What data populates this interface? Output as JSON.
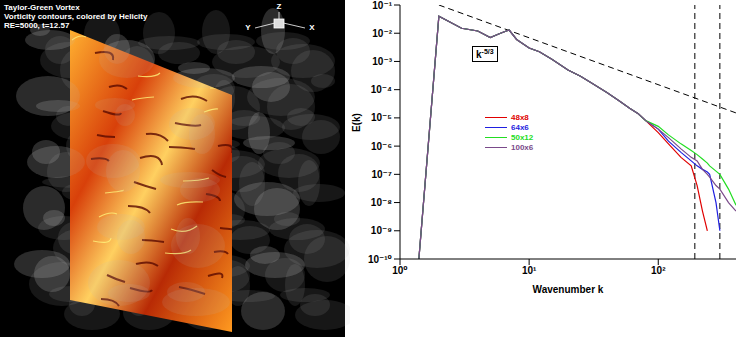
{
  "chart_data": {
    "type": "line",
    "x_label": "Wavenumber k",
    "y_label": "E(k)",
    "log": true,
    "grid": false,
    "legend": "center",
    "xlim": [
      1,
      400
    ],
    "xticks": [
      {
        "value": 1,
        "label": "10⁰"
      },
      {
        "value": 10,
        "label": "10¹"
      },
      {
        "value": 100,
        "label": "10²"
      }
    ],
    "ylim": [
      1e-10,
      0.1
    ],
    "yticks": [
      {
        "value": 1e-10,
        "label": "10⁻¹⁰"
      },
      {
        "value": 1e-09,
        "label": "10⁻⁹"
      },
      {
        "value": 1e-08,
        "label": "10⁻⁸"
      },
      {
        "value": 1e-07,
        "label": "10⁻⁷"
      },
      {
        "value": 1e-06,
        "label": "10⁻⁶"
      },
      {
        "value": 1e-05,
        "label": "10⁻⁵"
      },
      {
        "value": 0.0001,
        "label": "10⁻⁴"
      },
      {
        "value": 0.001,
        "label": "10⁻³"
      },
      {
        "value": 0.01,
        "label": "10⁻²"
      },
      {
        "value": 0.1,
        "label": "10⁻¹"
      }
    ],
    "x": [
      1.4,
      2,
      3,
      4,
      5,
      6,
      7,
      8,
      10,
      12,
      15,
      20,
      25,
      30,
      40,
      50,
      60,
      70,
      80,
      100,
      120,
      150,
      180,
      200,
      220,
      240,
      250,
      280,
      300,
      350,
      400
    ],
    "series": [
      {
        "name": "48x8",
        "color": "#e00000",
        "values": [
          1e-10,
          0.04,
          0.015,
          0.012,
          0.007,
          0.01,
          0.013,
          0.006,
          0.003,
          0.0022,
          0.0012,
          0.0005,
          0.0003,
          0.00018,
          8e-05,
          4e-05,
          2.2e-05,
          1.4e-05,
          8e-06,
          3e-06,
          1.2e-06,
          4e-07,
          2e-07,
          4e-08,
          5e-09,
          1e-09,
          null,
          null,
          null,
          null,
          null
        ]
      },
      {
        "name": "64x6",
        "color": "#1f1fe0",
        "values": [
          1e-10,
          0.04,
          0.015,
          0.012,
          0.007,
          0.01,
          0.013,
          0.006,
          0.003,
          0.0022,
          0.0012,
          0.0005,
          0.0003,
          0.00018,
          8e-05,
          4e-05,
          2.2e-05,
          1.4e-05,
          8e-06,
          4e-06,
          1.5e-06,
          6e-07,
          3e-07,
          2e-07,
          1.5e-07,
          1.2e-07,
          1e-07,
          1e-08,
          1e-09,
          null,
          null
        ]
      },
      {
        "name": "50x12",
        "color": "#22dd22",
        "values": [
          1e-10,
          0.04,
          0.015,
          0.012,
          0.007,
          0.01,
          0.013,
          0.006,
          0.003,
          0.0022,
          0.0012,
          0.0005,
          0.0003,
          0.00018,
          8e-05,
          4e-05,
          2.2e-05,
          1.4e-05,
          8e-06,
          5e-06,
          2.5e-06,
          1.2e-06,
          7e-07,
          5e-07,
          3.5e-07,
          2.5e-07,
          2e-07,
          1.3e-07,
          1e-07,
          3e-08,
          8e-09
        ]
      },
      {
        "name": "100x6",
        "color": "#7a4a8a",
        "values": [
          1e-10,
          0.04,
          0.015,
          0.012,
          0.007,
          0.01,
          0.013,
          0.006,
          0.003,
          0.0022,
          0.0012,
          0.0005,
          0.0003,
          0.00018,
          8e-05,
          4e-05,
          2.2e-05,
          1.4e-05,
          8e-06,
          4e-06,
          2e-06,
          8e-07,
          4e-07,
          3e-07,
          1.5e-07,
          1e-07,
          8e-08,
          4e-08,
          3e-08,
          1e-08,
          5e-09
        ]
      }
    ],
    "reference_line": {
      "base": "k",
      "exponent": "-5/3",
      "x": [
        2,
        400
      ],
      "values": [
        0.1,
        1.5e-05
      ],
      "color": "#000000",
      "line_style": "dashed"
    },
    "vlines": [
      192,
      300
    ]
  },
  "image_panel": {
    "type": "image",
    "title_lines": [
      "Taylor-Green Vortex",
      "Vorticity contours, colored by Helicity",
      "RE=5000, t=12.57"
    ],
    "axis_labels": {
      "x": "X",
      "y": "Y",
      "z": "Z"
    }
  }
}
